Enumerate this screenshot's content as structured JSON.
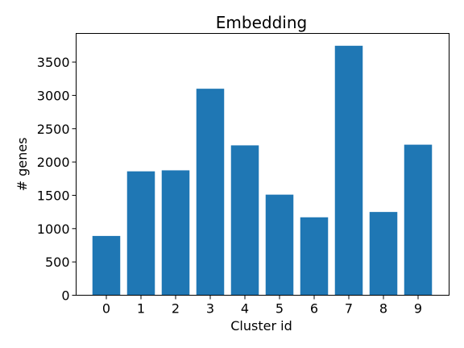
{
  "chart_data": {
    "type": "bar",
    "title": "Embedding",
    "xlabel": "Cluster id",
    "ylabel": "# genes",
    "categories": [
      "0",
      "1",
      "2",
      "3",
      "4",
      "5",
      "6",
      "7",
      "8",
      "9"
    ],
    "values": [
      890,
      1860,
      1875,
      3100,
      2250,
      1510,
      1170,
      3745,
      1250,
      2260
    ],
    "ylim": [
      0,
      3930
    ],
    "yticks": [
      0,
      500,
      1000,
      1500,
      2000,
      2500,
      3000,
      3500
    ],
    "grid": false,
    "bar_color": "#1f77b4"
  }
}
